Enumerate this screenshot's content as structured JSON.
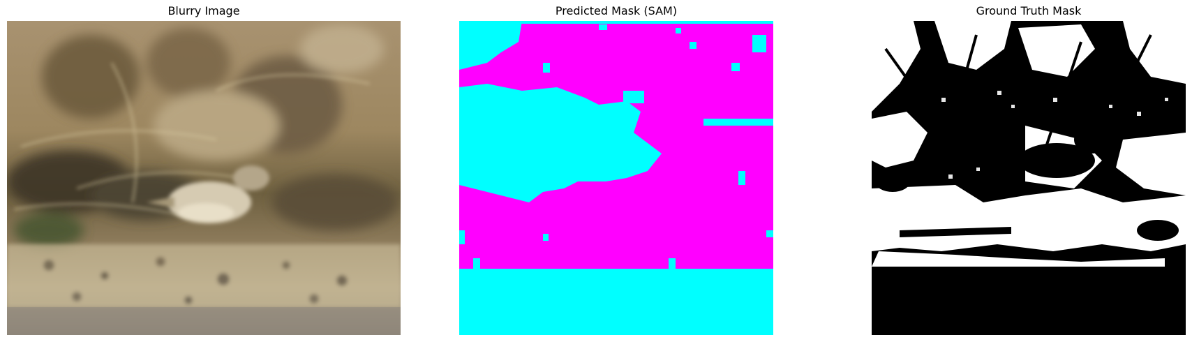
{
  "panels": [
    {
      "title": "Blurry Image"
    },
    {
      "title": "Predicted Mask (SAM)"
    },
    {
      "title": "Ground Truth Mask"
    }
  ],
  "colors": {
    "mask_foreground": "#ff00ff",
    "mask_background": "#00ffff",
    "gt_foreground": "#ffffff",
    "gt_background": "#000000"
  }
}
